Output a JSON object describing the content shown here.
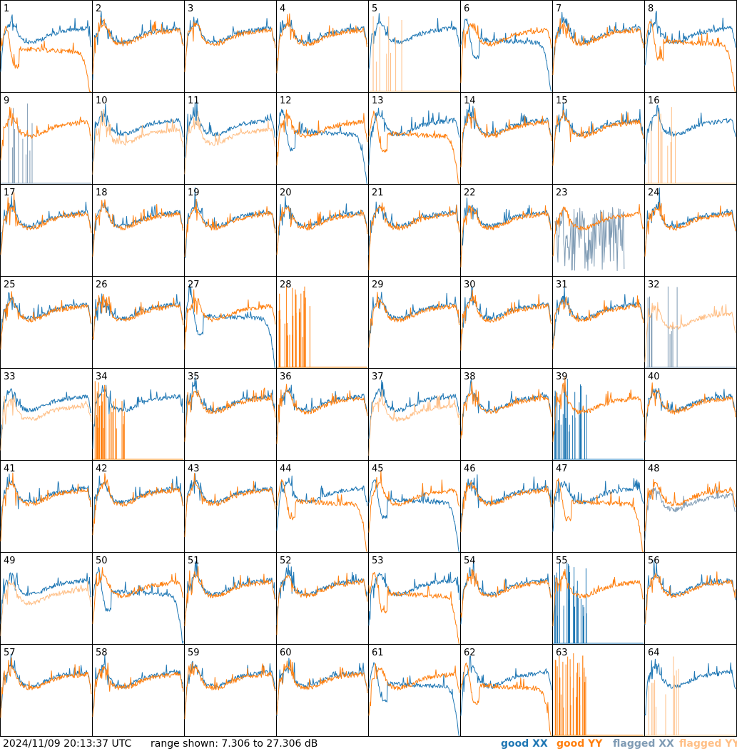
{
  "footer": {
    "timestamp": "2024/11/09 20:13:37 UTC",
    "range": "range shown: 7.306 to 27.306 dB"
  },
  "legend": [
    {
      "name": "good XX",
      "color": "#1f77b4"
    },
    {
      "name": "good YY",
      "color": "#ff7f0e"
    },
    {
      "name": "flagged XX",
      "color": "#7f9bb4"
    },
    {
      "name": "flagged YY",
      "color": "#ffbf86"
    }
  ],
  "chart_data": {
    "type": "line",
    "layout": "8x8 small multiples",
    "ylim": [
      7.306,
      27.306
    ],
    "yunit": "dB",
    "grid": false,
    "panels": [
      {
        "label": "1",
        "xx": "normal",
        "yy": "rolloff",
        "yy_level": "low"
      },
      {
        "label": "2",
        "xx": "normal",
        "yy": "normal"
      },
      {
        "label": "3",
        "xx": "normal",
        "yy": "normal"
      },
      {
        "label": "4",
        "xx": "normal",
        "yy": "normal"
      },
      {
        "label": "5",
        "xx": "normal",
        "yy": "flag_spikes"
      },
      {
        "label": "6",
        "xx": "rolloff",
        "yy": "normal"
      },
      {
        "label": "7",
        "xx": "normal",
        "yy": "normal"
      },
      {
        "label": "8",
        "xx": "normal",
        "yy": "rolloff"
      },
      {
        "label": "9",
        "xx": "flagged_spikes",
        "yy": "normal"
      },
      {
        "label": "10",
        "xx": "normal",
        "yy": "flagged_normal"
      },
      {
        "label": "11",
        "xx": "normal",
        "yy": "flagged_normal"
      },
      {
        "label": "12",
        "xx": "rolloff",
        "yy": "normal"
      },
      {
        "label": "13",
        "xx": "normal",
        "yy": "rolloff"
      },
      {
        "label": "14",
        "xx": "normal",
        "yy": "normal"
      },
      {
        "label": "15",
        "xx": "normal",
        "yy": "normal"
      },
      {
        "label": "16",
        "xx": "normal",
        "yy": "flag_spikes"
      },
      {
        "label": "17",
        "xx": "normal",
        "yy": "normal"
      },
      {
        "label": "18",
        "xx": "normal",
        "yy": "normal"
      },
      {
        "label": "19",
        "xx": "normal",
        "yy": "normal"
      },
      {
        "label": "20",
        "xx": "normal",
        "yy": "normal"
      },
      {
        "label": "21",
        "xx": "normal",
        "yy": "normal"
      },
      {
        "label": "22",
        "xx": "normal",
        "yy": "normal"
      },
      {
        "label": "23",
        "xx": "flagged_noise",
        "yy": "normal"
      },
      {
        "label": "24",
        "xx": "normal",
        "yy": "normal"
      },
      {
        "label": "25",
        "xx": "normal",
        "yy": "normal"
      },
      {
        "label": "26",
        "xx": "normal",
        "yy": "normal"
      },
      {
        "label": "27",
        "xx": "rolloff",
        "yy": "normal"
      },
      {
        "label": "28",
        "xx": "none",
        "yy": "spikes_only"
      },
      {
        "label": "29",
        "xx": "normal",
        "yy": "normal"
      },
      {
        "label": "30",
        "xx": "normal",
        "yy": "normal"
      },
      {
        "label": "31",
        "xx": "normal",
        "yy": "normal"
      },
      {
        "label": "32",
        "xx": "flag_spikes",
        "yy": "flagged_normal"
      },
      {
        "label": "33",
        "xx": "normal",
        "yy": "flagged_normal"
      },
      {
        "label": "34",
        "xx": "normal",
        "yy": "spikes_only"
      },
      {
        "label": "35",
        "xx": "normal",
        "yy": "normal"
      },
      {
        "label": "36",
        "xx": "normal",
        "yy": "normal"
      },
      {
        "label": "37",
        "xx": "normal",
        "yy": "flagged_normal"
      },
      {
        "label": "38",
        "xx": "normal",
        "yy": "normal"
      },
      {
        "label": "39",
        "xx": "spikes_only",
        "yy": "normal"
      },
      {
        "label": "40",
        "xx": "normal",
        "yy": "normal"
      },
      {
        "label": "41",
        "xx": "normal",
        "yy": "normal"
      },
      {
        "label": "42",
        "xx": "normal",
        "yy": "normal"
      },
      {
        "label": "43",
        "xx": "normal",
        "yy": "normal"
      },
      {
        "label": "44",
        "xx": "normal",
        "yy": "rolloff"
      },
      {
        "label": "45",
        "xx": "rolloff",
        "yy": "normal"
      },
      {
        "label": "46",
        "xx": "normal",
        "yy": "normal"
      },
      {
        "label": "47",
        "xx": "normal",
        "yy": "rolloff"
      },
      {
        "label": "48",
        "xx": "flagged_normal",
        "yy": "normal"
      },
      {
        "label": "49",
        "xx": "normal",
        "yy": "flagged_normal"
      },
      {
        "label": "50",
        "xx": "rolloff",
        "yy": "normal"
      },
      {
        "label": "51",
        "xx": "normal",
        "yy": "normal"
      },
      {
        "label": "52",
        "xx": "normal",
        "yy": "normal"
      },
      {
        "label": "53",
        "xx": "normal",
        "yy": "rolloff"
      },
      {
        "label": "54",
        "xx": "normal",
        "yy": "normal"
      },
      {
        "label": "55",
        "xx": "spikes_only",
        "yy": "normal"
      },
      {
        "label": "56",
        "xx": "normal",
        "yy": "normal"
      },
      {
        "label": "57",
        "xx": "normal",
        "yy": "normal"
      },
      {
        "label": "58",
        "xx": "normal",
        "yy": "normal"
      },
      {
        "label": "59",
        "xx": "normal",
        "yy": "normal"
      },
      {
        "label": "60",
        "xx": "normal",
        "yy": "normal"
      },
      {
        "label": "61",
        "xx": "rolloff",
        "yy": "normal"
      },
      {
        "label": "62",
        "xx": "normal",
        "yy": "rolloff"
      },
      {
        "label": "63",
        "xx": "none",
        "yy": "spikes_only"
      },
      {
        "label": "64",
        "xx": "normal",
        "yy": "flag_spikes"
      }
    ]
  }
}
